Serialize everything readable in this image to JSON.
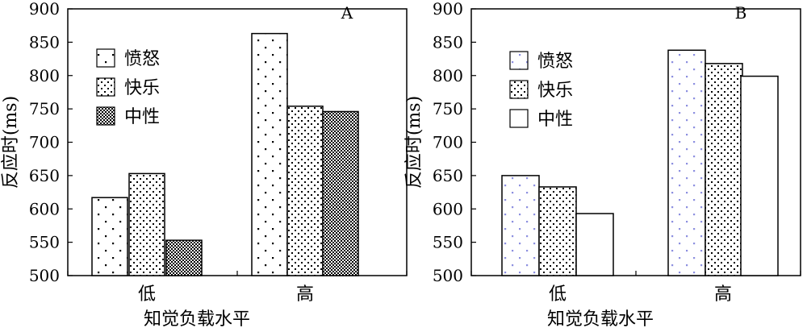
{
  "figure": {
    "legend": [
      "愤怒",
      "快乐",
      "中性"
    ]
  },
  "chart_data": [
    {
      "type": "bar",
      "panel_label": "A",
      "categories": [
        "低",
        "高"
      ],
      "xlabel": "知觉负载水平",
      "ylabel": "反应时(ms)",
      "ylim": [
        500,
        900
      ],
      "yticks": [
        500,
        550,
        600,
        650,
        700,
        750,
        800,
        850,
        900
      ],
      "series": [
        {
          "name": "愤怒",
          "values": [
            617,
            863
          ],
          "pattern": "sparse-dots"
        },
        {
          "name": "快乐",
          "values": [
            653,
            754
          ],
          "pattern": "medium-dots"
        },
        {
          "name": "中性",
          "values": [
            553,
            746
          ],
          "pattern": "dense-checker"
        }
      ],
      "legend_position": "upper-left",
      "grid": false
    },
    {
      "type": "bar",
      "panel_label": "B",
      "categories": [
        "低",
        "高"
      ],
      "xlabel": "知觉负载水平",
      "ylabel": "反应时(ms)",
      "ylim": [
        500,
        900
      ],
      "yticks": [
        500,
        550,
        600,
        650,
        700,
        750,
        800,
        850,
        900
      ],
      "series": [
        {
          "name": "愤怒",
          "values": [
            650,
            838
          ],
          "pattern": "blue-dots"
        },
        {
          "name": "快乐",
          "values": [
            633,
            818
          ],
          "pattern": "medium-dots"
        },
        {
          "name": "中性",
          "values": [
            593,
            799
          ],
          "pattern": "none"
        }
      ],
      "legend_position": "upper-left",
      "grid": false
    }
  ]
}
